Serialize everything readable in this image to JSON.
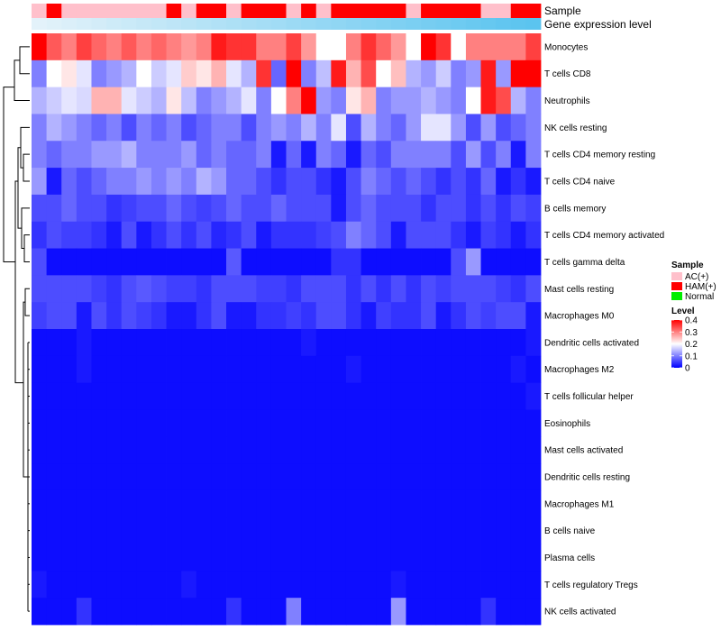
{
  "chart_data": {
    "type": "heatmap",
    "title": "",
    "annotation_tracks": [
      "Sample",
      "Gene expression level"
    ],
    "rows": [
      "Monocytes",
      "T cells CD8",
      "Neutrophils",
      "NK cells resting",
      "T cells CD4 memory resting",
      "T cells CD4 naive",
      "B cells memory",
      "T cells CD4 memory activated",
      "T cells gamma delta",
      "Mast cells resting",
      "Macrophages M0",
      "Dendritic cells activated",
      "Macrophages M2",
      "T cells follicular helper",
      "Eosinophils",
      "Mast cells activated",
      "Dendritic cells resting",
      "Macrophages M1",
      "B cells naive",
      "Plasma cells",
      "T cells regulatory  Tregs",
      "NK cells activated"
    ],
    "sample_groups": [
      "AC",
      "HAM",
      "AC",
      "AC",
      "AC",
      "AC",
      "AC",
      "AC",
      "AC",
      "HAM",
      "AC",
      "HAM",
      "HAM",
      "AC",
      "HAM",
      "HAM",
      "HAM",
      "AC",
      "HAM",
      "AC",
      "HAM",
      "HAM",
      "HAM",
      "HAM",
      "HAM",
      "AC",
      "HAM",
      "HAM",
      "HAM",
      "HAM",
      "AC",
      "AC",
      "HAM",
      "HAM"
    ],
    "expression_level": [
      0.02,
      0.05,
      0.08,
      0.11,
      0.14,
      0.17,
      0.2,
      0.23,
      0.26,
      0.29,
      0.32,
      0.35,
      0.38,
      0.41,
      0.44,
      0.47,
      0.5,
      0.53,
      0.56,
      0.59,
      0.62,
      0.65,
      0.68,
      0.71,
      0.74,
      0.77,
      0.8,
      0.83,
      0.86,
      0.89,
      0.92,
      0.95,
      0.98,
      1.0
    ],
    "values": [
      [
        0.4,
        0.33,
        0.3,
        0.35,
        0.32,
        0.3,
        0.33,
        0.3,
        0.32,
        0.3,
        0.28,
        0.3,
        0.38,
        0.36,
        0.36,
        0.3,
        0.3,
        0.35,
        0.28,
        0.2,
        0.2,
        0.3,
        0.36,
        0.32,
        0.28,
        0.2,
        0.4,
        0.36,
        0.2,
        0.3,
        0.3,
        0.3,
        0.3,
        0.35
      ],
      [
        0.1,
        0.2,
        0.22,
        0.18,
        0.1,
        0.12,
        0.14,
        0.2,
        0.16,
        0.18,
        0.24,
        0.22,
        0.26,
        0.18,
        0.14,
        0.36,
        0.08,
        0.4,
        0.1,
        0.15,
        0.38,
        0.26,
        0.34,
        0.2,
        0.25,
        0.14,
        0.12,
        0.16,
        0.1,
        0.12,
        0.38,
        0.12,
        0.4,
        0.4
      ],
      [
        0.14,
        0.16,
        0.18,
        0.17,
        0.26,
        0.26,
        0.18,
        0.16,
        0.14,
        0.22,
        0.15,
        0.1,
        0.12,
        0.14,
        0.18,
        0.1,
        0.2,
        0.3,
        0.4,
        0.12,
        0.1,
        0.22,
        0.26,
        0.1,
        0.12,
        0.12,
        0.14,
        0.12,
        0.1,
        0.2,
        0.38,
        0.34,
        0.14,
        0.1
      ],
      [
        0.1,
        0.14,
        0.12,
        0.1,
        0.08,
        0.1,
        0.06,
        0.1,
        0.08,
        0.1,
        0.06,
        0.08,
        0.1,
        0.1,
        0.06,
        0.1,
        0.12,
        0.1,
        0.14,
        0.1,
        0.18,
        0.06,
        0.14,
        0.1,
        0.08,
        0.12,
        0.18,
        0.18,
        0.12,
        0.06,
        0.12,
        0.06,
        0.08,
        0.1
      ],
      [
        0.1,
        0.08,
        0.1,
        0.1,
        0.12,
        0.12,
        0.14,
        0.1,
        0.1,
        0.1,
        0.12,
        0.08,
        0.1,
        0.08,
        0.08,
        0.1,
        0.02,
        0.08,
        0.02,
        0.1,
        0.08,
        0.02,
        0.08,
        0.06,
        0.1,
        0.1,
        0.1,
        0.1,
        0.06,
        0.12,
        0.06,
        0.1,
        0.02,
        0.1
      ],
      [
        0.12,
        0.02,
        0.08,
        0.06,
        0.08,
        0.1,
        0.1,
        0.12,
        0.1,
        0.12,
        0.1,
        0.14,
        0.12,
        0.08,
        0.08,
        0.06,
        0.04,
        0.06,
        0.06,
        0.04,
        0.02,
        0.06,
        0.1,
        0.08,
        0.06,
        0.08,
        0.06,
        0.04,
        0.06,
        0.04,
        0.08,
        0.02,
        0.04,
        0.02
      ],
      [
        0.06,
        0.06,
        0.08,
        0.06,
        0.06,
        0.04,
        0.05,
        0.06,
        0.06,
        0.08,
        0.06,
        0.05,
        0.06,
        0.08,
        0.06,
        0.06,
        0.08,
        0.06,
        0.06,
        0.06,
        0.02,
        0.06,
        0.08,
        0.06,
        0.06,
        0.06,
        0.04,
        0.06,
        0.06,
        0.04,
        0.06,
        0.04,
        0.06,
        0.05
      ],
      [
        0.04,
        0.06,
        0.05,
        0.05,
        0.04,
        0.02,
        0.06,
        0.02,
        0.04,
        0.06,
        0.04,
        0.06,
        0.03,
        0.04,
        0.06,
        0.02,
        0.04,
        0.04,
        0.04,
        0.05,
        0.06,
        0.1,
        0.08,
        0.06,
        0.02,
        0.06,
        0.06,
        0.06,
        0.04,
        0.02,
        0.05,
        0.04,
        0.02,
        0.04
      ],
      [
        0.06,
        0.01,
        0.01,
        0.01,
        0.01,
        0.01,
        0.01,
        0.01,
        0.01,
        0.01,
        0.01,
        0.01,
        0.01,
        0.07,
        0.01,
        0.01,
        0.01,
        0.01,
        0.01,
        0.01,
        0.04,
        0.04,
        0.01,
        0.01,
        0.01,
        0.01,
        0.01,
        0.01,
        0.06,
        0.12,
        0.01,
        0.01,
        0.01,
        0.01
      ],
      [
        0.06,
        0.06,
        0.06,
        0.06,
        0.05,
        0.04,
        0.06,
        0.07,
        0.06,
        0.05,
        0.05,
        0.04,
        0.06,
        0.06,
        0.06,
        0.05,
        0.05,
        0.04,
        0.06,
        0.06,
        0.06,
        0.04,
        0.06,
        0.04,
        0.06,
        0.04,
        0.06,
        0.05,
        0.06,
        0.06,
        0.06,
        0.05,
        0.04,
        0.06
      ],
      [
        0.05,
        0.06,
        0.06,
        0.02,
        0.06,
        0.04,
        0.06,
        0.05,
        0.04,
        0.02,
        0.02,
        0.04,
        0.06,
        0.02,
        0.02,
        0.04,
        0.04,
        0.05,
        0.04,
        0.06,
        0.06,
        0.04,
        0.02,
        0.05,
        0.04,
        0.04,
        0.06,
        0.02,
        0.04,
        0.06,
        0.05,
        0.06,
        0.06,
        0.02
      ],
      [
        0.01,
        0.01,
        0.01,
        0.02,
        0.01,
        0.01,
        0.01,
        0.01,
        0.01,
        0.01,
        0.01,
        0.01,
        0.01,
        0.01,
        0.01,
        0.01,
        0.01,
        0.01,
        0.02,
        0.01,
        0.01,
        0.01,
        0.01,
        0.01,
        0.01,
        0.01,
        0.01,
        0.01,
        0.01,
        0.01,
        0.01,
        0.01,
        0.01,
        0.02
      ],
      [
        0.01,
        0.01,
        0.01,
        0.02,
        0.01,
        0.01,
        0.01,
        0.01,
        0.01,
        0.01,
        0.01,
        0.01,
        0.01,
        0.01,
        0.01,
        0.01,
        0.01,
        0.01,
        0.01,
        0.01,
        0.01,
        0.02,
        0.01,
        0.01,
        0.01,
        0.01,
        0.01,
        0.01,
        0.01,
        0.01,
        0.01,
        0.01,
        0.02,
        0.01
      ],
      [
        0.01,
        0.01,
        0.01,
        0.01,
        0.01,
        0.01,
        0.01,
        0.01,
        0.01,
        0.01,
        0.01,
        0.01,
        0.01,
        0.01,
        0.01,
        0.01,
        0.01,
        0.01,
        0.01,
        0.01,
        0.01,
        0.01,
        0.01,
        0.01,
        0.01,
        0.01,
        0.01,
        0.01,
        0.01,
        0.01,
        0.01,
        0.01,
        0.01,
        0.02
      ],
      [
        0.01,
        0.01,
        0.01,
        0.01,
        0.01,
        0.01,
        0.01,
        0.01,
        0.01,
        0.01,
        0.01,
        0.01,
        0.01,
        0.01,
        0.01,
        0.01,
        0.01,
        0.01,
        0.01,
        0.01,
        0.01,
        0.01,
        0.01,
        0.01,
        0.01,
        0.01,
        0.01,
        0.01,
        0.01,
        0.01,
        0.01,
        0.01,
        0.01,
        0.01
      ],
      [
        0.01,
        0.01,
        0.01,
        0.01,
        0.01,
        0.01,
        0.01,
        0.01,
        0.01,
        0.01,
        0.01,
        0.01,
        0.01,
        0.01,
        0.01,
        0.01,
        0.01,
        0.01,
        0.01,
        0.01,
        0.01,
        0.01,
        0.01,
        0.01,
        0.01,
        0.01,
        0.01,
        0.01,
        0.01,
        0.01,
        0.01,
        0.01,
        0.01,
        0.01
      ],
      [
        0.01,
        0.01,
        0.01,
        0.01,
        0.01,
        0.01,
        0.01,
        0.01,
        0.01,
        0.01,
        0.01,
        0.01,
        0.01,
        0.01,
        0.01,
        0.01,
        0.01,
        0.01,
        0.01,
        0.01,
        0.01,
        0.01,
        0.01,
        0.01,
        0.01,
        0.01,
        0.01,
        0.01,
        0.01,
        0.01,
        0.01,
        0.01,
        0.01,
        0.01
      ],
      [
        0.01,
        0.01,
        0.01,
        0.01,
        0.01,
        0.01,
        0.01,
        0.01,
        0.01,
        0.01,
        0.01,
        0.01,
        0.01,
        0.01,
        0.01,
        0.01,
        0.01,
        0.01,
        0.01,
        0.01,
        0.01,
        0.01,
        0.01,
        0.01,
        0.01,
        0.01,
        0.01,
        0.01,
        0.01,
        0.01,
        0.01,
        0.01,
        0.01,
        0.01
      ],
      [
        0.01,
        0.01,
        0.01,
        0.01,
        0.01,
        0.01,
        0.01,
        0.01,
        0.01,
        0.01,
        0.01,
        0.01,
        0.01,
        0.01,
        0.01,
        0.01,
        0.01,
        0.01,
        0.01,
        0.01,
        0.01,
        0.01,
        0.01,
        0.01,
        0.01,
        0.01,
        0.01,
        0.01,
        0.01,
        0.01,
        0.01,
        0.01,
        0.01,
        0.01
      ],
      [
        0.01,
        0.01,
        0.01,
        0.01,
        0.01,
        0.01,
        0.01,
        0.01,
        0.01,
        0.01,
        0.01,
        0.01,
        0.01,
        0.01,
        0.01,
        0.01,
        0.01,
        0.01,
        0.01,
        0.01,
        0.01,
        0.01,
        0.01,
        0.01,
        0.01,
        0.01,
        0.01,
        0.01,
        0.01,
        0.01,
        0.01,
        0.01,
        0.01,
        0.01
      ],
      [
        0.02,
        0.01,
        0.01,
        0.01,
        0.01,
        0.01,
        0.01,
        0.01,
        0.01,
        0.01,
        0.02,
        0.01,
        0.01,
        0.01,
        0.01,
        0.01,
        0.01,
        0.01,
        0.01,
        0.01,
        0.01,
        0.01,
        0.01,
        0.01,
        0.02,
        0.01,
        0.01,
        0.01,
        0.01,
        0.01,
        0.01,
        0.01,
        0.01,
        0.01
      ],
      [
        0.01,
        0.01,
        0.01,
        0.04,
        0.01,
        0.01,
        0.01,
        0.01,
        0.01,
        0.01,
        0.01,
        0.01,
        0.01,
        0.04,
        0.01,
        0.01,
        0.01,
        0.1,
        0.01,
        0.01,
        0.01,
        0.01,
        0.01,
        0.01,
        0.12,
        0.01,
        0.01,
        0.01,
        0.01,
        0.01,
        0.04,
        0.01,
        0.01,
        0.01
      ]
    ],
    "legend": {
      "sample_title": "Sample",
      "sample_items": [
        {
          "key": "AC",
          "label": "AC(+)",
          "color": "#ffc0cb"
        },
        {
          "key": "HAM",
          "label": "HAM(+)",
          "color": "#ff0000"
        },
        {
          "key": "Normal",
          "label": "Normal",
          "color": "#00ee00"
        }
      ],
      "level_title": "Level",
      "level_ticks": [
        0.4,
        0.3,
        0.2,
        0.1,
        0
      ],
      "scale_min": 0,
      "scale_max": 0.4
    },
    "colors": {
      "low": "#0000ff",
      "mid": "#ffffff",
      "high": "#ff0000",
      "expression_start": "#e6f3fa",
      "expression_end": "#5bc4ef"
    }
  }
}
